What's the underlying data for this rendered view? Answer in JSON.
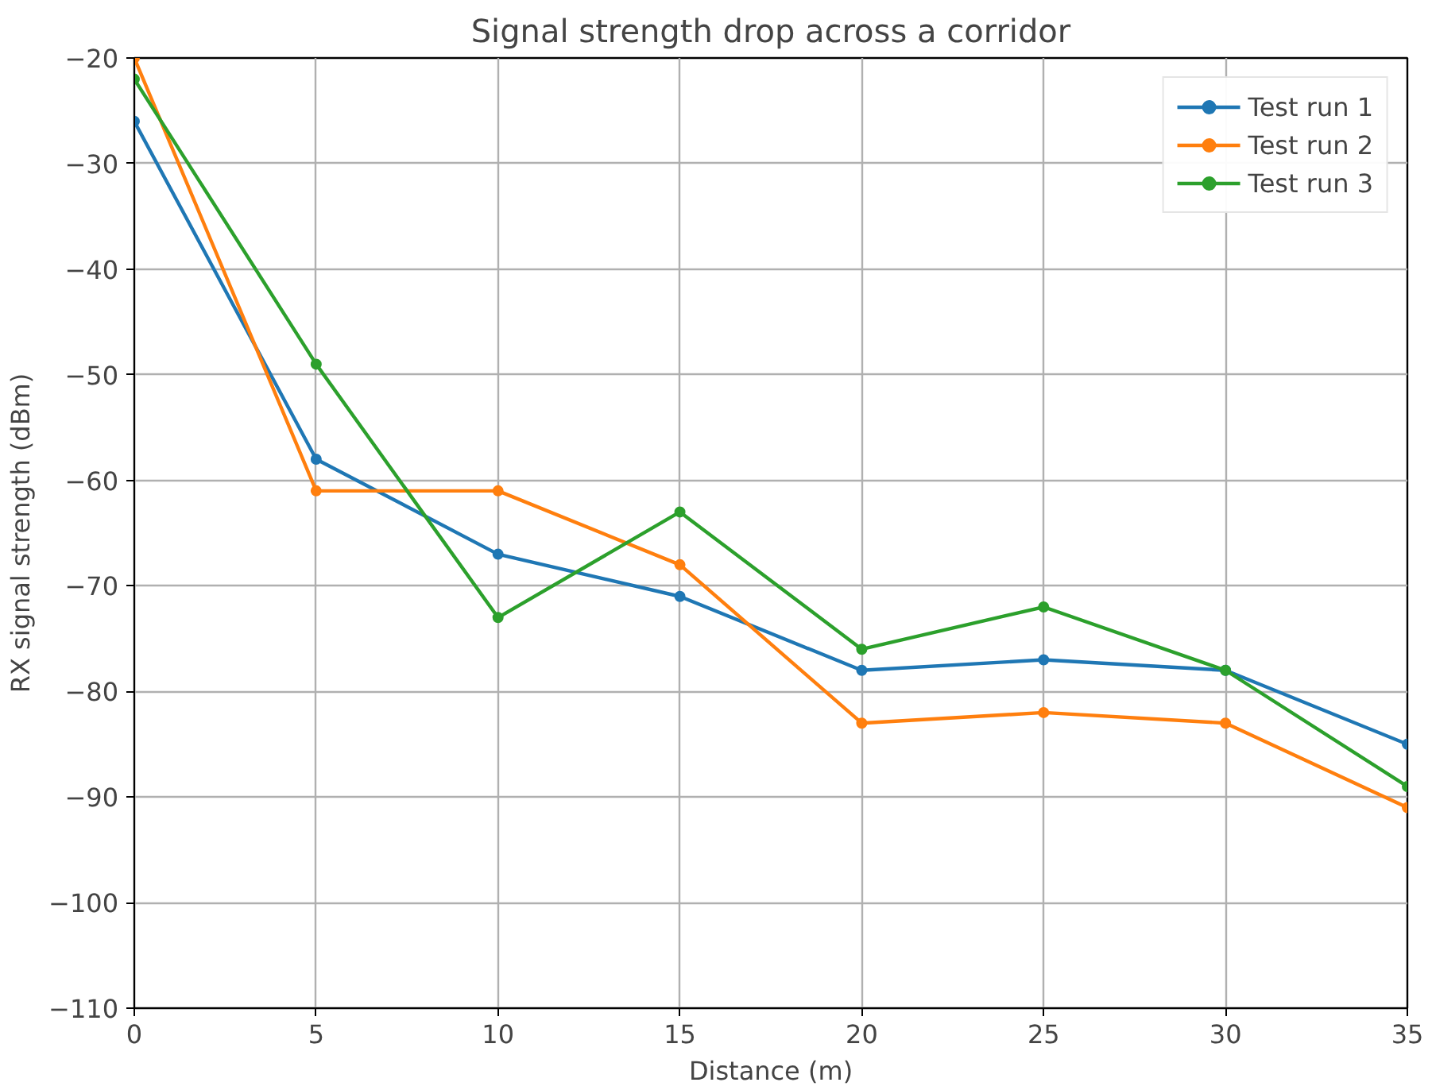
{
  "chart_data": {
    "type": "line",
    "title": "Signal strength drop across a corridor",
    "xlabel": "Distance (m)",
    "ylabel": "RX signal strength (dBm)",
    "x": [
      0,
      5,
      10,
      15,
      20,
      25,
      30,
      35
    ],
    "series": [
      {
        "name": "Test run 1",
        "color": "#1f77b4",
        "values": [
          -26,
          -58,
          -67,
          -71,
          -78,
          -77,
          -78,
          -85
        ]
      },
      {
        "name": "Test run 2",
        "color": "#ff7f0e",
        "values": [
          -20,
          -61,
          -61,
          -68,
          -83,
          -82,
          -83,
          -91
        ]
      },
      {
        "name": "Test run 3",
        "color": "#2ca02c",
        "values": [
          -22,
          -49,
          -73,
          -63,
          -76,
          -72,
          -78,
          -89
        ]
      }
    ],
    "xlim": [
      0,
      35
    ],
    "ylim": [
      -110,
      -20
    ],
    "xticks": [
      0,
      5,
      10,
      15,
      20,
      25,
      30,
      35
    ],
    "yticks": [
      {
        "value": -20,
        "label": "−20"
      },
      {
        "value": -30,
        "label": "−30"
      },
      {
        "value": -40,
        "label": "−40"
      },
      {
        "value": -50,
        "label": "−50"
      },
      {
        "value": -60,
        "label": "−60"
      },
      {
        "value": -70,
        "label": "−70"
      },
      {
        "value": -80,
        "label": "−80"
      },
      {
        "value": -90,
        "label": "−90"
      },
      {
        "value": -100,
        "label": "−100"
      },
      {
        "value": -110,
        "label": "−110"
      }
    ],
    "grid": true,
    "legend": "top right",
    "marker": "circle",
    "line_style": "solid"
  }
}
